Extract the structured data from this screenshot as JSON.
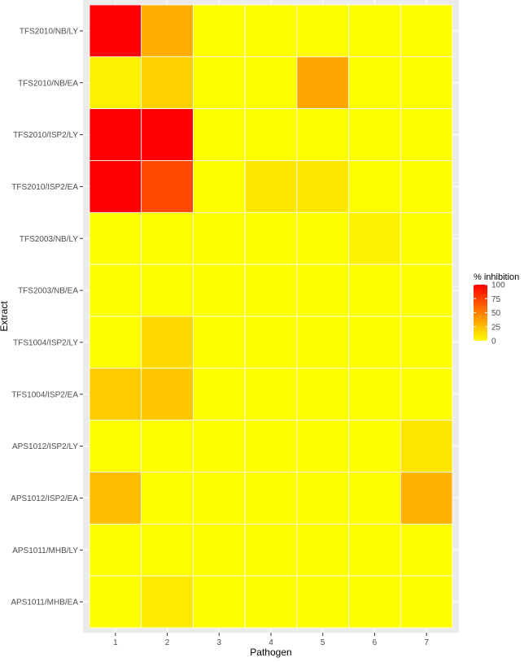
{
  "chart_data": {
    "type": "heatmap",
    "title": "",
    "xlabel": "Pathogen",
    "ylabel": "Extract",
    "x": [
      "1",
      "2",
      "3",
      "4",
      "5",
      "6",
      "7"
    ],
    "y": [
      "TFS2010/NB/LY",
      "TFS2010/NB/EA",
      "TFS2010/ISP2/LY",
      "TFS2010/ISP2/EA",
      "TFS2003/NB/LY",
      "TFS2003/NB/EA",
      "TFS1004/ISP2/LY",
      "TFS1004/ISP2/EA",
      "APS1012/ISP2/LY",
      "APS1012/ISP2/EA",
      "APS1011/MHB/LY",
      "APS1011/MHB/EA"
    ],
    "values": [
      [
        100,
        32,
        0,
        0,
        0,
        0,
        0
      ],
      [
        5,
        18,
        0,
        0,
        35,
        0,
        0
      ],
      [
        100,
        100,
        0,
        0,
        0,
        0,
        0
      ],
      [
        100,
        72,
        0,
        10,
        10,
        0,
        0
      ],
      [
        0,
        0,
        0,
        0,
        0,
        5,
        0
      ],
      [
        0,
        0,
        0,
        0,
        0,
        0,
        0
      ],
      [
        0,
        15,
        0,
        0,
        0,
        0,
        0
      ],
      [
        20,
        22,
        0,
        0,
        0,
        0,
        0
      ],
      [
        0,
        0,
        0,
        0,
        0,
        0,
        10
      ],
      [
        25,
        0,
        0,
        0,
        0,
        0,
        30
      ],
      [
        0,
        0,
        0,
        0,
        0,
        0,
        0
      ],
      [
        0,
        8,
        0,
        0,
        0,
        0,
        0
      ]
    ],
    "scale": {
      "min": 0,
      "max": 100,
      "low_color": "#FFFF00",
      "high_color": "#FF0000"
    },
    "legend": {
      "title": "% inhibition",
      "ticks": [
        "0",
        "25",
        "50",
        "75",
        "100"
      ],
      "position": "right"
    },
    "grid": true
  }
}
